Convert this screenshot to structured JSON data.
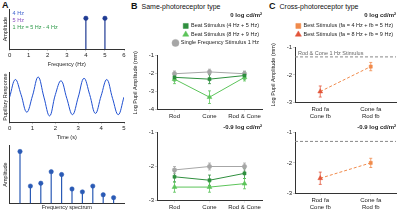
{
  "chart_data": [
    {
      "panel": "A",
      "type": "stem",
      "xlabel": "Frequency (Hz)",
      "ylabel": "Amplitude",
      "x": [
        4,
        5
      ],
      "values": [
        1,
        1
      ],
      "color": "#1f3a93",
      "marker": "circle",
      "xlim": [
        0,
        6
      ],
      "xticks": [
        0,
        1,
        2,
        3,
        4,
        5,
        6
      ],
      "ylim": [
        0,
        1.3
      ],
      "tick_labels": "x",
      "grid": false,
      "annotations": [
        {
          "text": "4 Hz",
          "color": "#3a5fcd"
        },
        {
          "text": "5 Hz",
          "color": "#8a4fc0"
        },
        {
          "text": "1 Hz = 5 Hz - 4 Hz",
          "color": "#2e9a4a"
        }
      ]
    },
    {
      "type": "line",
      "xlabel": "Time (s)",
      "ylabel": "Pupillary Response",
      "x": [
        0,
        0.25,
        0.5,
        0.75,
        1,
        1.25,
        1.5,
        1.75,
        2,
        2.25,
        2.5,
        2.75,
        3,
        3.25,
        3.5,
        3.75,
        4,
        4.25,
        4.5,
        4.75,
        5
      ],
      "values": [
        0,
        0.7,
        0.1,
        -0.6,
        0.05,
        0.8,
        0,
        -0.75,
        0.1,
        0.65,
        -0.05,
        -0.7,
        0,
        0.75,
        0.1,
        -0.65,
        0.05,
        0.7,
        -0.05,
        -0.7,
        0
      ],
      "color": "#2050d0",
      "xlim": [
        0,
        5
      ],
      "xticks": [
        0,
        1,
        2,
        3,
        4,
        5
      ],
      "ylim": [
        -1,
        1
      ],
      "tick_labels": "x",
      "grid": false
    },
    {
      "type": "stem",
      "xlabel": "Frequency spectrum",
      "ylabel": "Amplitude",
      "x": [
        1,
        2,
        3,
        4,
        5,
        6,
        7,
        8,
        9,
        10
      ],
      "values": [
        0.9,
        0.3,
        0.35,
        0.55,
        0.5,
        0.25,
        0.2,
        0.3,
        0.15,
        0.1
      ],
      "color": "#2a5ab5",
      "marker": "circle",
      "xlim": [
        0,
        11
      ],
      "ylim": [
        0,
        1
      ],
      "tick_labels": false,
      "grid": false
    },
    {
      "panel": "B",
      "title": "Same-photoreceptor type",
      "subtitle": "0 log cd/m²",
      "type": "line",
      "ylabel": "Log Pupil Amplitude (mm)",
      "categories": [
        "Rod",
        "Cone",
        "Rod & Cone"
      ],
      "ylim": [
        -4,
        -1
      ],
      "yticks": [
        -4,
        -3,
        -2,
        -1
      ],
      "grid": false,
      "legend": "top-right",
      "series": [
        {
          "name": "Beat Stimulus (4 Hz + 5 Hz)",
          "color": "#2f8f3e",
          "marker": "square",
          "values": [
            -2.2,
            -2.3,
            -2.1
          ],
          "errors": [
            0.2,
            0.25,
            0.2
          ]
        },
        {
          "name": "Beat Stimulus (8 Hz + 9 Hz)",
          "color": "#5cc45a",
          "marker": "triangle",
          "values": [
            -2.3,
            -3.3,
            -2.2
          ],
          "errors": [
            0.25,
            0.35,
            0.2
          ]
        },
        {
          "name": "Single Frequency Stimulus 1 Hz",
          "color": "#a6a6a6",
          "marker": "circle",
          "values": [
            -2.0,
            -1.9,
            -2.0
          ],
          "errors": [
            0.15,
            0.15,
            0.15
          ]
        }
      ]
    },
    {
      "subtitle": "-0.9 log cd/m²",
      "type": "line",
      "categories": [
        "Rod",
        "Cone",
        "Rod & Cone"
      ],
      "ylim": [
        -3,
        -1
      ],
      "yticks": [
        -3,
        -2,
        -1
      ],
      "grid": false,
      "series": [
        {
          "color": "#2f8f3e",
          "marker": "square",
          "values": [
            -2.3,
            -2.4,
            -2.2
          ],
          "errors": [
            0.15,
            0.15,
            0.15
          ]
        },
        {
          "color": "#5cc45a",
          "marker": "triangle",
          "values": [
            -2.6,
            -2.6,
            -2.5
          ],
          "errors": [
            0.15,
            0.15,
            0.15
          ]
        },
        {
          "color": "#a6a6a6",
          "marker": "circle",
          "values": [
            -2.1,
            -2.0,
            -2.0
          ],
          "errors": [
            0.1,
            0.1,
            0.1
          ]
        }
      ]
    },
    {
      "panel": "C",
      "title": "Cross-photoreceptor type",
      "subtitle": "0 log cd/m²",
      "type": "line",
      "line_style": "dashed",
      "ylabel": "Log Pupil Amplitude (mm)",
      "categories": [
        [
          "Rod fa",
          "Cone fb"
        ],
        [
          "Cone fa",
          "Rod fb"
        ]
      ],
      "ylim": [
        -3,
        -1
      ],
      "yticks": [
        -3,
        -2,
        -1
      ],
      "grid": false,
      "legend": "top-right",
      "reference": {
        "value": -1.35,
        "label": "Rod & Cone 1 Hz Stimulus"
      },
      "series": [
        {
          "name": "Best Stimulus (fa = 4 Hz + fb = 5 Hz)",
          "color": "#f08a4b",
          "marker": "square",
          "values": [
            null,
            -1.7
          ],
          "errors": [
            null,
            0.15
          ]
        },
        {
          "name": "Best Stimulus (fa = 8 Hz + fb = 9 Hz)",
          "color": "#e2553a",
          "marker": "triangle",
          "values": [
            -2.6,
            null
          ],
          "errors": [
            0.2,
            null
          ]
        }
      ]
    },
    {
      "subtitle": "-0.9 log cd/m²",
      "type": "line",
      "line_style": "dashed",
      "categories": [
        [
          "Rod fa",
          "Cone fb"
        ],
        [
          "Cone fa",
          "Rod fb"
        ]
      ],
      "ylim": [
        -3,
        -1
      ],
      "yticks": [
        -3,
        -2,
        -1
      ],
      "grid": false,
      "reference": {
        "value": -1.3
      },
      "series": [
        {
          "color": "#f08a4b",
          "marker": "square",
          "values": [
            null,
            -2.0
          ],
          "errors": [
            null,
            0.15
          ]
        },
        {
          "color": "#e2553a",
          "marker": "triangle",
          "values": [
            -2.5,
            null
          ],
          "errors": [
            0.2,
            null
          ]
        }
      ]
    }
  ]
}
